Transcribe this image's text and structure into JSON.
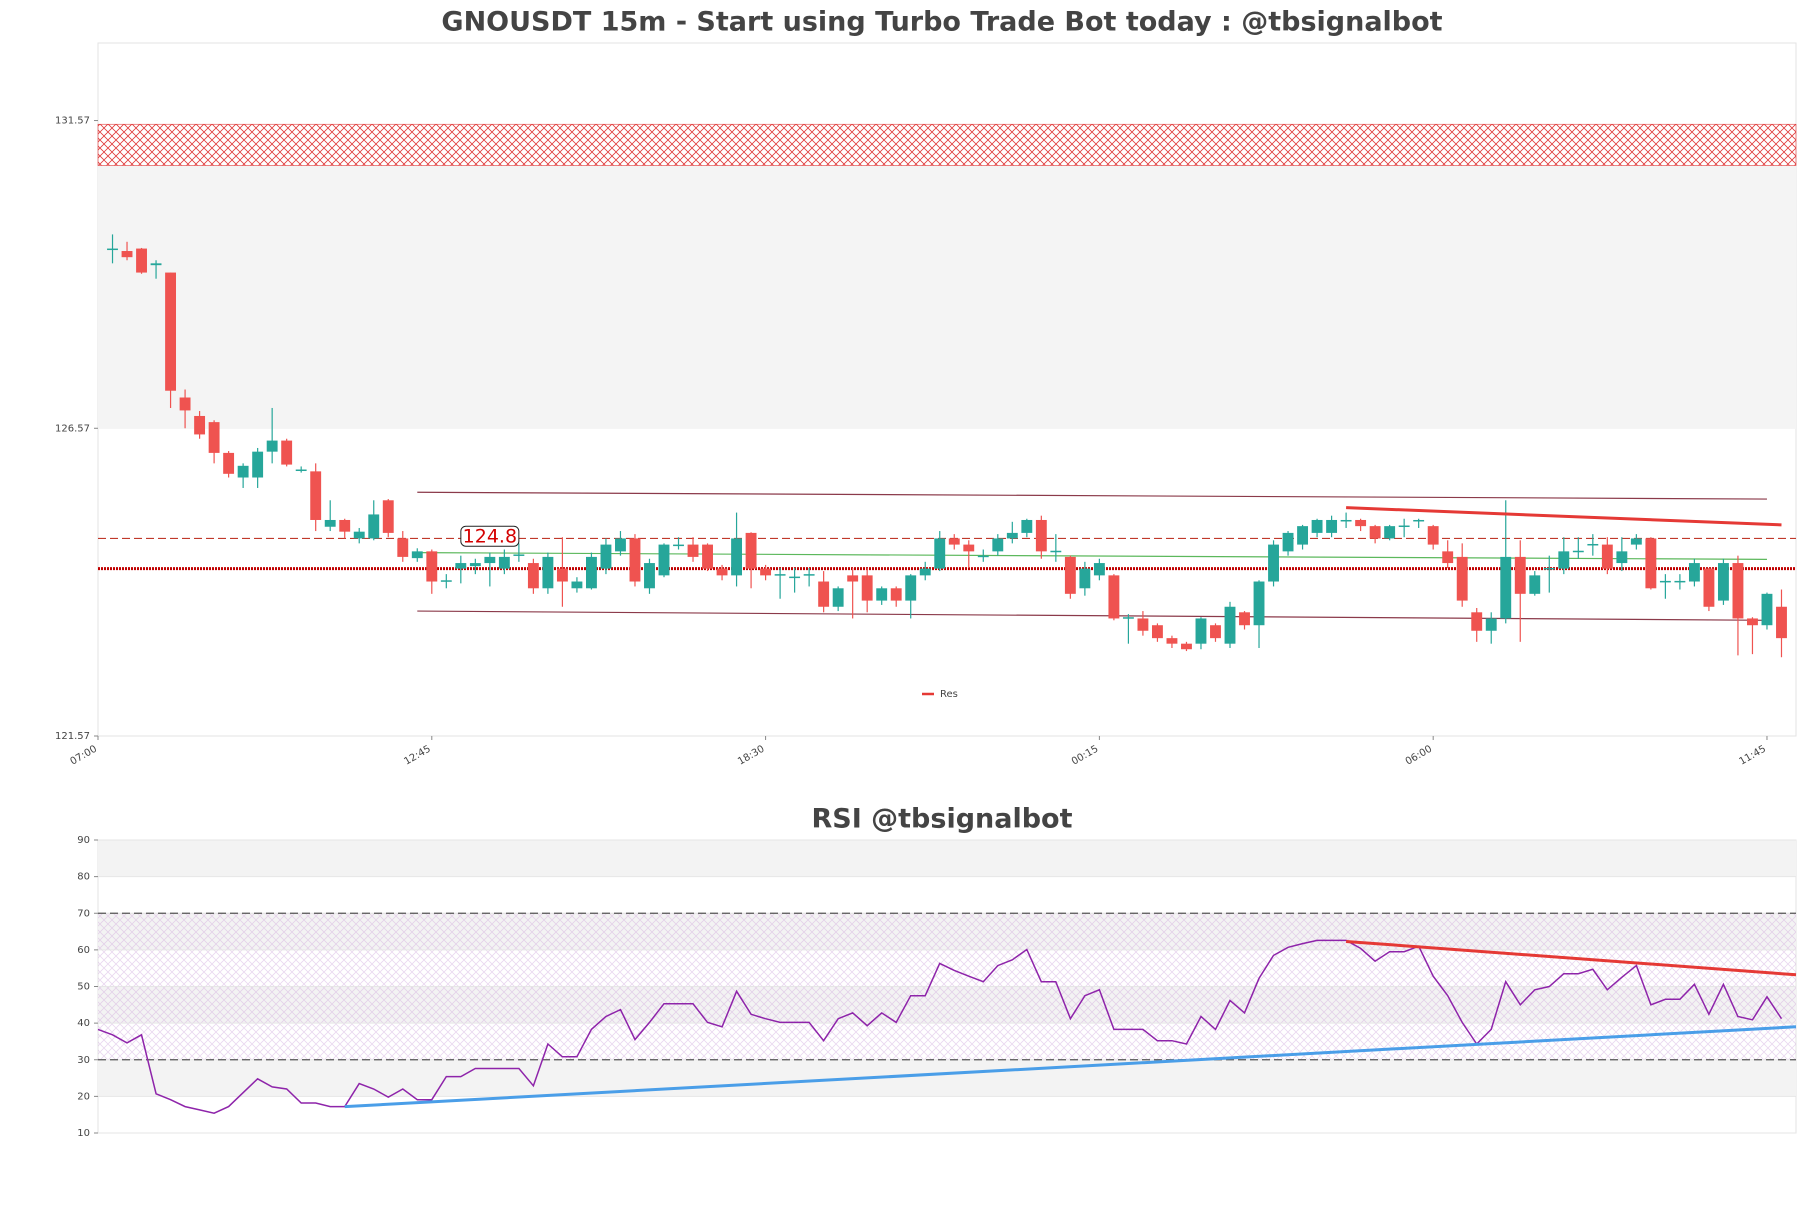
{
  "chart_data": [
    {
      "type": "candlestick",
      "title": "GNOUSDT 15m - Start using Turbo Trade Bot today : @tbsignalbot",
      "xlim": [
        -1,
        116
      ],
      "xticks": [
        {
          "value": -1,
          "label": "07:00"
        },
        {
          "value": 22,
          "label": "12:45"
        },
        {
          "value": 45,
          "label": "18:30"
        },
        {
          "value": 68,
          "label": "00:15"
        },
        {
          "value": 91,
          "label": "06:00"
        },
        {
          "value": 114,
          "label": "11:45"
        }
      ],
      "ylim": [
        121.57,
        132.83
      ],
      "yticks": [
        121.57,
        126.57,
        131.57
      ],
      "open": [
        129.47,
        129.45,
        129.49,
        129.22,
        129.1,
        127.07,
        126.77,
        126.67,
        126.17,
        125.77,
        125.77,
        126.19,
        126.37,
        125.89,
        125.87,
        124.97,
        125.08,
        124.78,
        124.78,
        125.4,
        124.78,
        124.46,
        124.57,
        124.08,
        124.29,
        124.33,
        124.38,
        124.29,
        124.5,
        124.38,
        123.97,
        124.29,
        123.97,
        123.97,
        124.29,
        124.57,
        124.78,
        123.97,
        124.18,
        124.66,
        124.68,
        124.68,
        124.29,
        124.18,
        124.87,
        124.29,
        124.18,
        124.14,
        124.18,
        124.08,
        123.67,
        124.18,
        124.18,
        123.77,
        123.97,
        123.77,
        124.18,
        124.29,
        124.78,
        124.68,
        124.48,
        124.57,
        124.78,
        124.87,
        125.08,
        124.56,
        124.48,
        123.97,
        124.18,
        124.18,
        123.48,
        123.48,
        123.37,
        123.16,
        123.07,
        123.07,
        123.37,
        123.07,
        123.58,
        123.37,
        124.08,
        124.57,
        124.68,
        124.87,
        124.87,
        125.06,
        125.08,
        124.98,
        124.78,
        124.97,
        125.06,
        124.98,
        124.57,
        124.48,
        123.58,
        123.28,
        123.48,
        124.48,
        123.88,
        124.28,
        124.29,
        124.56,
        124.67,
        124.68,
        124.38,
        124.68,
        124.78,
        124.07,
        124.07,
        124.08,
        124.29,
        123.77,
        124.38,
        123.48,
        123.37,
        123.67
      ],
      "high": [
        129.72,
        129.6,
        129.5,
        129.3,
        129.1,
        127.2,
        126.85,
        126.7,
        126.2,
        126.0,
        126.25,
        126.9,
        126.4,
        125.95,
        126.0,
        125.4,
        125.1,
        124.95,
        125.4,
        125.42,
        124.9,
        124.62,
        124.6,
        124.2,
        124.5,
        124.45,
        124.55,
        124.6,
        124.7,
        124.45,
        124.55,
        124.8,
        124.15,
        124.55,
        124.78,
        124.9,
        124.85,
        124.45,
        124.7,
        124.8,
        124.8,
        124.7,
        124.35,
        125.2,
        124.88,
        124.35,
        124.3,
        124.3,
        124.3,
        124.25,
        124.0,
        124.3,
        124.3,
        124.0,
        124.0,
        124.2,
        124.4,
        124.9,
        124.85,
        124.75,
        124.6,
        124.85,
        125.05,
        125.1,
        125.15,
        124.85,
        124.5,
        124.4,
        124.45,
        124.2,
        123.55,
        123.6,
        123.4,
        123.2,
        123.1,
        123.5,
        123.4,
        123.75,
        123.6,
        124.1,
        124.75,
        124.9,
        125.0,
        125.1,
        125.15,
        125.2,
        125.1,
        125.0,
        125.0,
        125.1,
        125.1,
        125.0,
        124.75,
        124.7,
        123.65,
        123.58,
        125.4,
        124.75,
        124.25,
        124.5,
        124.8,
        124.8,
        124.85,
        124.8,
        124.8,
        124.85,
        124.8,
        124.2,
        124.2,
        124.45,
        124.3,
        124.45,
        124.5,
        123.5,
        123.9,
        123.95
      ],
      "low": [
        129.25,
        129.3,
        129.08,
        129.0,
        126.9,
        126.57,
        126.4,
        126.0,
        125.77,
        125.6,
        125.6,
        126.0,
        125.95,
        125.85,
        124.9,
        124.9,
        124.78,
        124.7,
        124.75,
        124.8,
        124.4,
        124.4,
        123.88,
        123.97,
        124.05,
        124.2,
        124.0,
        124.2,
        124.4,
        123.88,
        123.88,
        123.67,
        123.9,
        123.95,
        124.2,
        124.5,
        124.0,
        123.88,
        124.15,
        124.6,
        124.4,
        124.25,
        124.1,
        124.0,
        123.97,
        124.1,
        123.8,
        123.9,
        124.0,
        123.58,
        123.6,
        123.48,
        123.58,
        123.7,
        123.67,
        123.48,
        124.1,
        124.25,
        124.6,
        124.3,
        124.4,
        124.5,
        124.7,
        124.8,
        124.45,
        124.4,
        123.8,
        123.85,
        124.1,
        123.45,
        123.07,
        123.2,
        123.1,
        123.0,
        122.95,
        122.98,
        123.1,
        123.0,
        123.3,
        123.0,
        124.0,
        124.5,
        124.6,
        124.8,
        124.8,
        124.95,
        124.9,
        124.7,
        124.75,
        124.8,
        124.95,
        124.6,
        124.3,
        123.67,
        123.1,
        123.07,
        123.4,
        123.1,
        123.85,
        123.9,
        124.2,
        124.45,
        124.5,
        124.2,
        124.25,
        124.6,
        123.95,
        123.8,
        123.95,
        124.0,
        123.6,
        123.7,
        122.88,
        122.9,
        123.3,
        122.85
      ],
      "close": [
        129.49,
        129.35,
        129.1,
        129.25,
        127.18,
        126.86,
        126.47,
        126.17,
        125.83,
        125.96,
        126.19,
        126.37,
        125.98,
        125.9,
        125.08,
        125.08,
        124.89,
        124.89,
        125.17,
        124.87,
        124.48,
        124.57,
        124.08,
        124.1,
        124.38,
        124.38,
        124.48,
        124.48,
        124.52,
        123.97,
        124.48,
        124.08,
        124.08,
        124.48,
        124.68,
        124.78,
        124.08,
        124.38,
        124.68,
        124.68,
        124.48,
        124.29,
        124.18,
        124.78,
        124.29,
        124.18,
        124.2,
        124.16,
        124.2,
        123.67,
        123.97,
        124.08,
        123.77,
        123.97,
        123.77,
        124.18,
        124.29,
        124.78,
        124.68,
        124.57,
        124.5,
        124.78,
        124.87,
        125.08,
        124.57,
        124.58,
        123.88,
        124.29,
        124.38,
        123.48,
        123.5,
        123.28,
        123.16,
        123.07,
        122.98,
        123.48,
        123.16,
        123.67,
        123.37,
        124.08,
        124.68,
        124.87,
        124.98,
        125.08,
        125.08,
        125.08,
        124.98,
        124.78,
        124.98,
        124.99,
        125.08,
        124.68,
        124.38,
        123.77,
        123.28,
        123.48,
        124.48,
        123.88,
        124.18,
        124.3,
        124.57,
        124.58,
        124.69,
        124.29,
        124.57,
        124.78,
        123.97,
        124.09,
        124.09,
        124.38,
        123.67,
        124.38,
        123.48,
        123.37,
        123.88,
        123.16
      ],
      "up_color": "#26a69a",
      "down_color": "#ef5350",
      "zones": [
        {
          "from": 126.56,
          "to": 130.84,
          "color": "#f4f4f4",
          "hatch": false
        },
        {
          "from": 130.84,
          "to": 131.51,
          "color": "#e03a3a",
          "hatch": true
        }
      ],
      "levels": [
        {
          "value": 124.78,
          "color": "#c0392b",
          "style": "dashed"
        },
        {
          "value": 124.29,
          "color": "#c00000",
          "style": "dotted"
        }
      ],
      "trendlines": [
        {
          "x": [
            21,
            114
          ],
          "y": [
            125.53,
            125.42
          ],
          "color": "#8b3a4a"
        },
        {
          "x": [
            21,
            114
          ],
          "y": [
            123.6,
            123.45
          ],
          "color": "#8b3a4a"
        },
        {
          "x": [
            21,
            114
          ],
          "y": [
            124.55,
            124.44
          ],
          "color": "#5cb85c"
        }
      ],
      "series": [
        {
          "name": "Res",
          "color": "#e53935",
          "x": [
            85,
            115
          ],
          "values": [
            125.28,
            125.0
          ]
        }
      ],
      "annotations": [
        {
          "label": "124.8",
          "x": 26,
          "y": 124.8
        }
      ],
      "legend": "lower center",
      "grid": false
    },
    {
      "type": "line",
      "title": "RSI @tbsignalbot",
      "xlim": [
        0,
        117
      ],
      "ylim": [
        10,
        90
      ],
      "yticks": [
        10,
        20,
        30,
        40,
        50,
        60,
        70,
        80,
        90
      ],
      "values": [
        38.3,
        36.8,
        34.6,
        36.8,
        20.7,
        19.1,
        17.2,
        16.3,
        15.4,
        17.2,
        21,
        24.8,
        22.6,
        22,
        18.2,
        18.2,
        17.2,
        17.2,
        23.5,
        22,
        19.8,
        22,
        19.1,
        19.1,
        25.4,
        25.4,
        27.6,
        27.6,
        27.6,
        27.6,
        22.9,
        34.3,
        30.8,
        30.8,
        38.3,
        41.8,
        43.7,
        35.5,
        40.2,
        45.3,
        45.3,
        45.3,
        40.2,
        39,
        48.7,
        42.4,
        41.2,
        40.2,
        40.2,
        40.2,
        35.2,
        41.2,
        42.8,
        39.3,
        42.8,
        40.2,
        47.5,
        47.5,
        56.3,
        54.4,
        52.8,
        51.3,
        55.7,
        57.3,
        60.1,
        51.3,
        51.3,
        41.2,
        47.5,
        49.1,
        38.3,
        38.3,
        38.3,
        35.2,
        35.2,
        34.3,
        41.8,
        38.3,
        46.2,
        42.8,
        52.2,
        58.5,
        60.7,
        61.7,
        62.6,
        62.6,
        62.6,
        60.4,
        56.9,
        59.5,
        59.5,
        61,
        52.8,
        47.5,
        40.2,
        34.3,
        38.3,
        51.3,
        45,
        49.1,
        50,
        53.5,
        53.5,
        54.7,
        49.1,
        52.5,
        55.7,
        45,
        46.5,
        46.5,
        50.6,
        42.4,
        50.6,
        41.8,
        40.9,
        47.2,
        41.2
      ],
      "color": "#8e24aa",
      "bands": [
        {
          "from": 80,
          "to": 90
        },
        {
          "from": 60,
          "to": 70
        },
        {
          "from": 40,
          "to": 50
        },
        {
          "from": 20,
          "to": 30
        }
      ],
      "band_color": "#f3f3f3",
      "hatch": {
        "from": 30,
        "to": 70,
        "color": "#cfa6dc"
      },
      "levels": [
        {
          "value": 70,
          "color": "#555555",
          "style": "dashed"
        },
        {
          "value": 30,
          "color": "#555555",
          "style": "dashed"
        }
      ],
      "trendlines": [
        {
          "x": [
            86,
            117
          ],
          "y": [
            62.3,
            53.2
          ],
          "color": "#e53935"
        },
        {
          "x": [
            17,
            117
          ],
          "y": [
            17.2,
            39
          ],
          "color": "#4a9ee8"
        }
      ],
      "grid": true
    }
  ]
}
